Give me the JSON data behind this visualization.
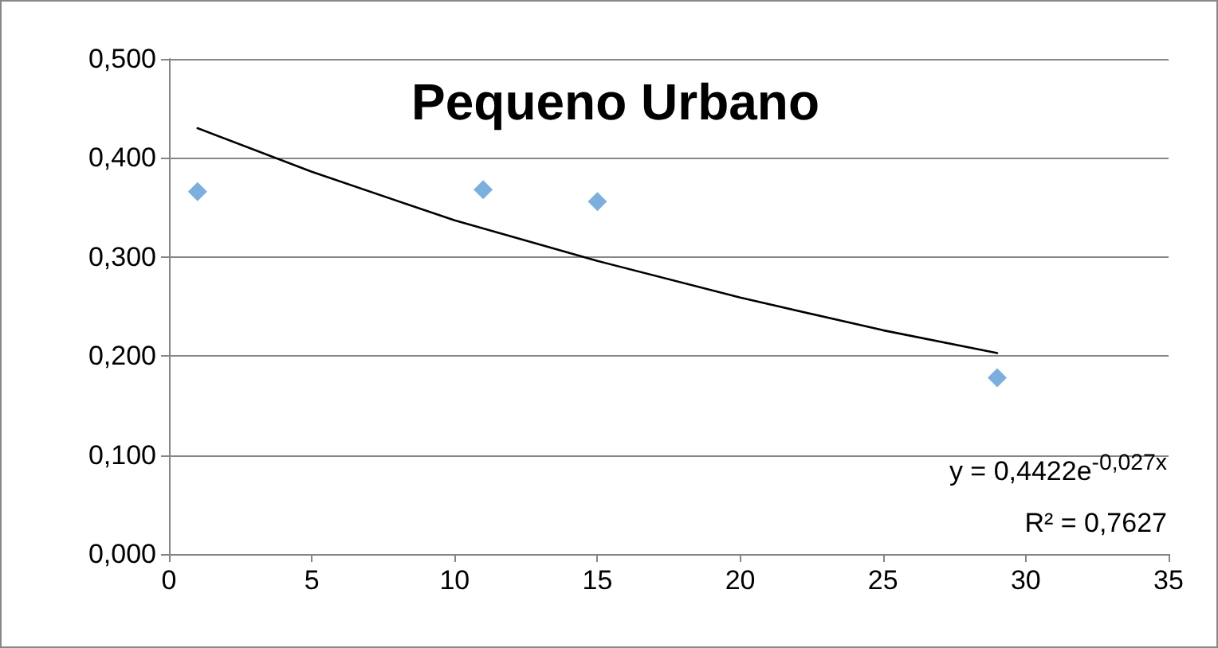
{
  "chart_data": {
    "type": "scatter",
    "title": "Pequeno Urbano",
    "series": [
      {
        "color": "#5b9bd5",
        "marker": "diamond",
        "x": [
          1,
          11,
          15,
          29
        ],
        "values": [
          0.366,
          0.368,
          0.356,
          0.178
        ]
      },
      {
        "type": "line",
        "color": "#000000",
        "marker": "none",
        "line_style": "solid",
        "x": [
          1,
          5,
          10,
          15,
          20,
          25,
          29
        ],
        "values": [
          0.43,
          0.386,
          0.337,
          0.296,
          0.259,
          0.226,
          0.203
        ]
      }
    ],
    "xlim": [
      0,
      35
    ],
    "xticks": [
      0,
      5,
      10,
      15,
      20,
      25,
      30,
      35
    ],
    "ylim": [
      0,
      0.5
    ],
    "yticks": [
      {
        "value": 0,
        "label": "0,000"
      },
      {
        "value": 0.1,
        "label": "0,100"
      },
      {
        "value": 0.2,
        "label": "0,200"
      },
      {
        "value": 0.3,
        "label": "0,300"
      },
      {
        "value": 0.4,
        "label": "0,400"
      },
      {
        "value": 0.5,
        "label": "0,500"
      }
    ],
    "grid": "y",
    "annotations": [
      "y = 0,4422e$^{-0,027x}$",
      "R² = 0,7627"
    ]
  }
}
